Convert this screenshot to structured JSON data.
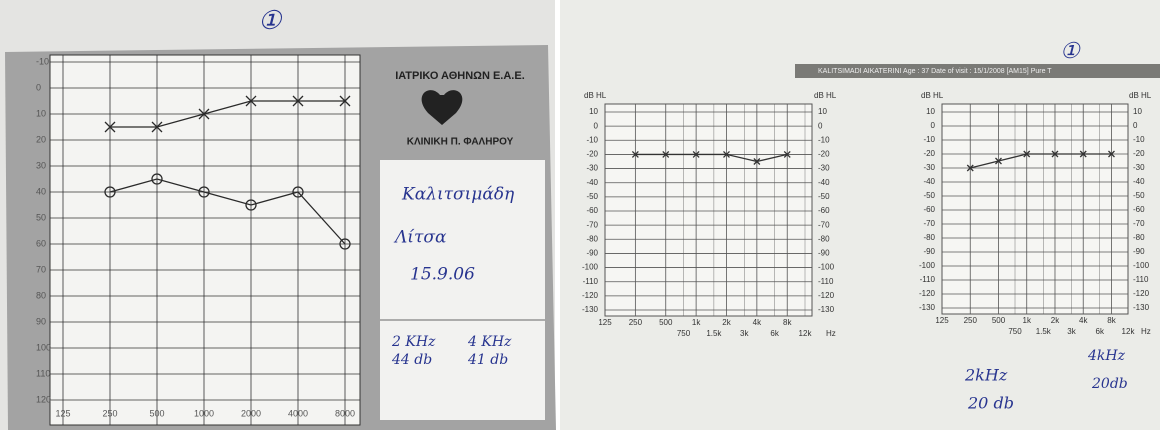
{
  "chart_data": [
    {
      "type": "line",
      "xscale": "log",
      "grid": true,
      "x": [
        250,
        500,
        1000,
        2000,
        4000,
        8000
      ],
      "series": [
        {
          "color": "#2a2a2a",
          "marker": "x",
          "values": [
            15,
            15,
            10,
            5,
            5,
            5
          ]
        },
        {
          "color": "#2a2a2a",
          "marker": "o",
          "values": [
            40,
            35,
            40,
            45,
            40,
            60
          ]
        }
      ],
      "xlim": [
        125,
        8000
      ],
      "xticks": [
        125,
        250,
        500,
        1000,
        2000,
        4000,
        8000
      ],
      "ylim": [
        120,
        -10
      ],
      "yticks": [
        -10,
        0,
        10,
        20,
        30,
        40,
        50,
        60,
        70,
        80,
        90,
        100,
        110,
        120
      ]
    },
    {
      "type": "line",
      "xscale": "log",
      "grid": true,
      "y_label": "dB HL",
      "x_label": "Hz",
      "right_labels": true,
      "x": [
        250,
        500,
        1000,
        2000,
        4000,
        8000
      ],
      "series": [
        {
          "color": "#333333",
          "marker": "x",
          "values": [
            -20,
            -20,
            -20,
            -20,
            -25,
            -20
          ]
        }
      ],
      "xlim": [
        125,
        12000
      ],
      "xticks": [
        125,
        250,
        500,
        750,
        {
          "value": 1000,
          "label": "1k"
        },
        {
          "value": 1500,
          "label": "1.5k"
        },
        {
          "value": 2000,
          "label": "2k"
        },
        {
          "value": 3000,
          "label": "3k"
        },
        {
          "value": 4000,
          "label": "4k"
        },
        {
          "value": 6000,
          "label": "6k"
        },
        {
          "value": 8000,
          "label": "8k"
        },
        {
          "value": 12000,
          "label": "12k"
        }
      ],
      "ylim": [
        -130,
        10
      ],
      "yticks": [
        10,
        0,
        -10,
        -20,
        -30,
        -40,
        -50,
        -60,
        -70,
        -80,
        -90,
        -100,
        -110,
        -120,
        -130
      ]
    },
    {
      "type": "line",
      "xscale": "log",
      "grid": true,
      "y_label": "dB HL",
      "x_label": "Hz",
      "right_labels": true,
      "x": [
        250,
        500,
        1000,
        2000,
        4000,
        8000
      ],
      "series": [
        {
          "color": "#333333",
          "marker": "x",
          "values": [
            -30,
            -25,
            -20,
            -20,
            -20,
            -20
          ]
        }
      ],
      "xlim": [
        125,
        12000
      ],
      "xticks": [
        125,
        250,
        500,
        750,
        {
          "value": 1000,
          "label": "1k"
        },
        {
          "value": 1500,
          "label": "1.5k"
        },
        {
          "value": 2000,
          "label": "2k"
        },
        {
          "value": 3000,
          "label": "3k"
        },
        {
          "value": 4000,
          "label": "4k"
        },
        {
          "value": 6000,
          "label": "6k"
        },
        {
          "value": 8000,
          "label": "8k"
        },
        {
          "value": 12000,
          "label": "12k"
        }
      ],
      "ylim": [
        -130,
        10
      ],
      "yticks": [
        10,
        0,
        -10,
        -20,
        -30,
        -40,
        -50,
        -60,
        -70,
        -80,
        -90,
        -100,
        -110,
        -120,
        -130
      ]
    }
  ],
  "left_sheet": {
    "mark": "①",
    "clinic": "ΙΑΤΡΙΚΟ ΑΘΗΝΩΝ Ε.Α.Ε.",
    "clinic_branch": "ΚΛΙΝΙΚΗ Π. ΦΑΛΗΡΟΥ",
    "patient_surname": "Καλιτσιμάδη",
    "patient_name": "Λίτσα",
    "date": "15.9.06",
    "notes": [
      "2 KHz",
      "44 db",
      "4 KHz",
      "41 db"
    ]
  },
  "right_sheet": {
    "mark": "①",
    "header": "KALITSIMADI   AIKATERINI   Age : 37   Date of visit : 15/1/2008   [AM15] Pure T",
    "notes": [
      "2kHz",
      "20 db",
      "4kHz",
      "20db"
    ]
  }
}
